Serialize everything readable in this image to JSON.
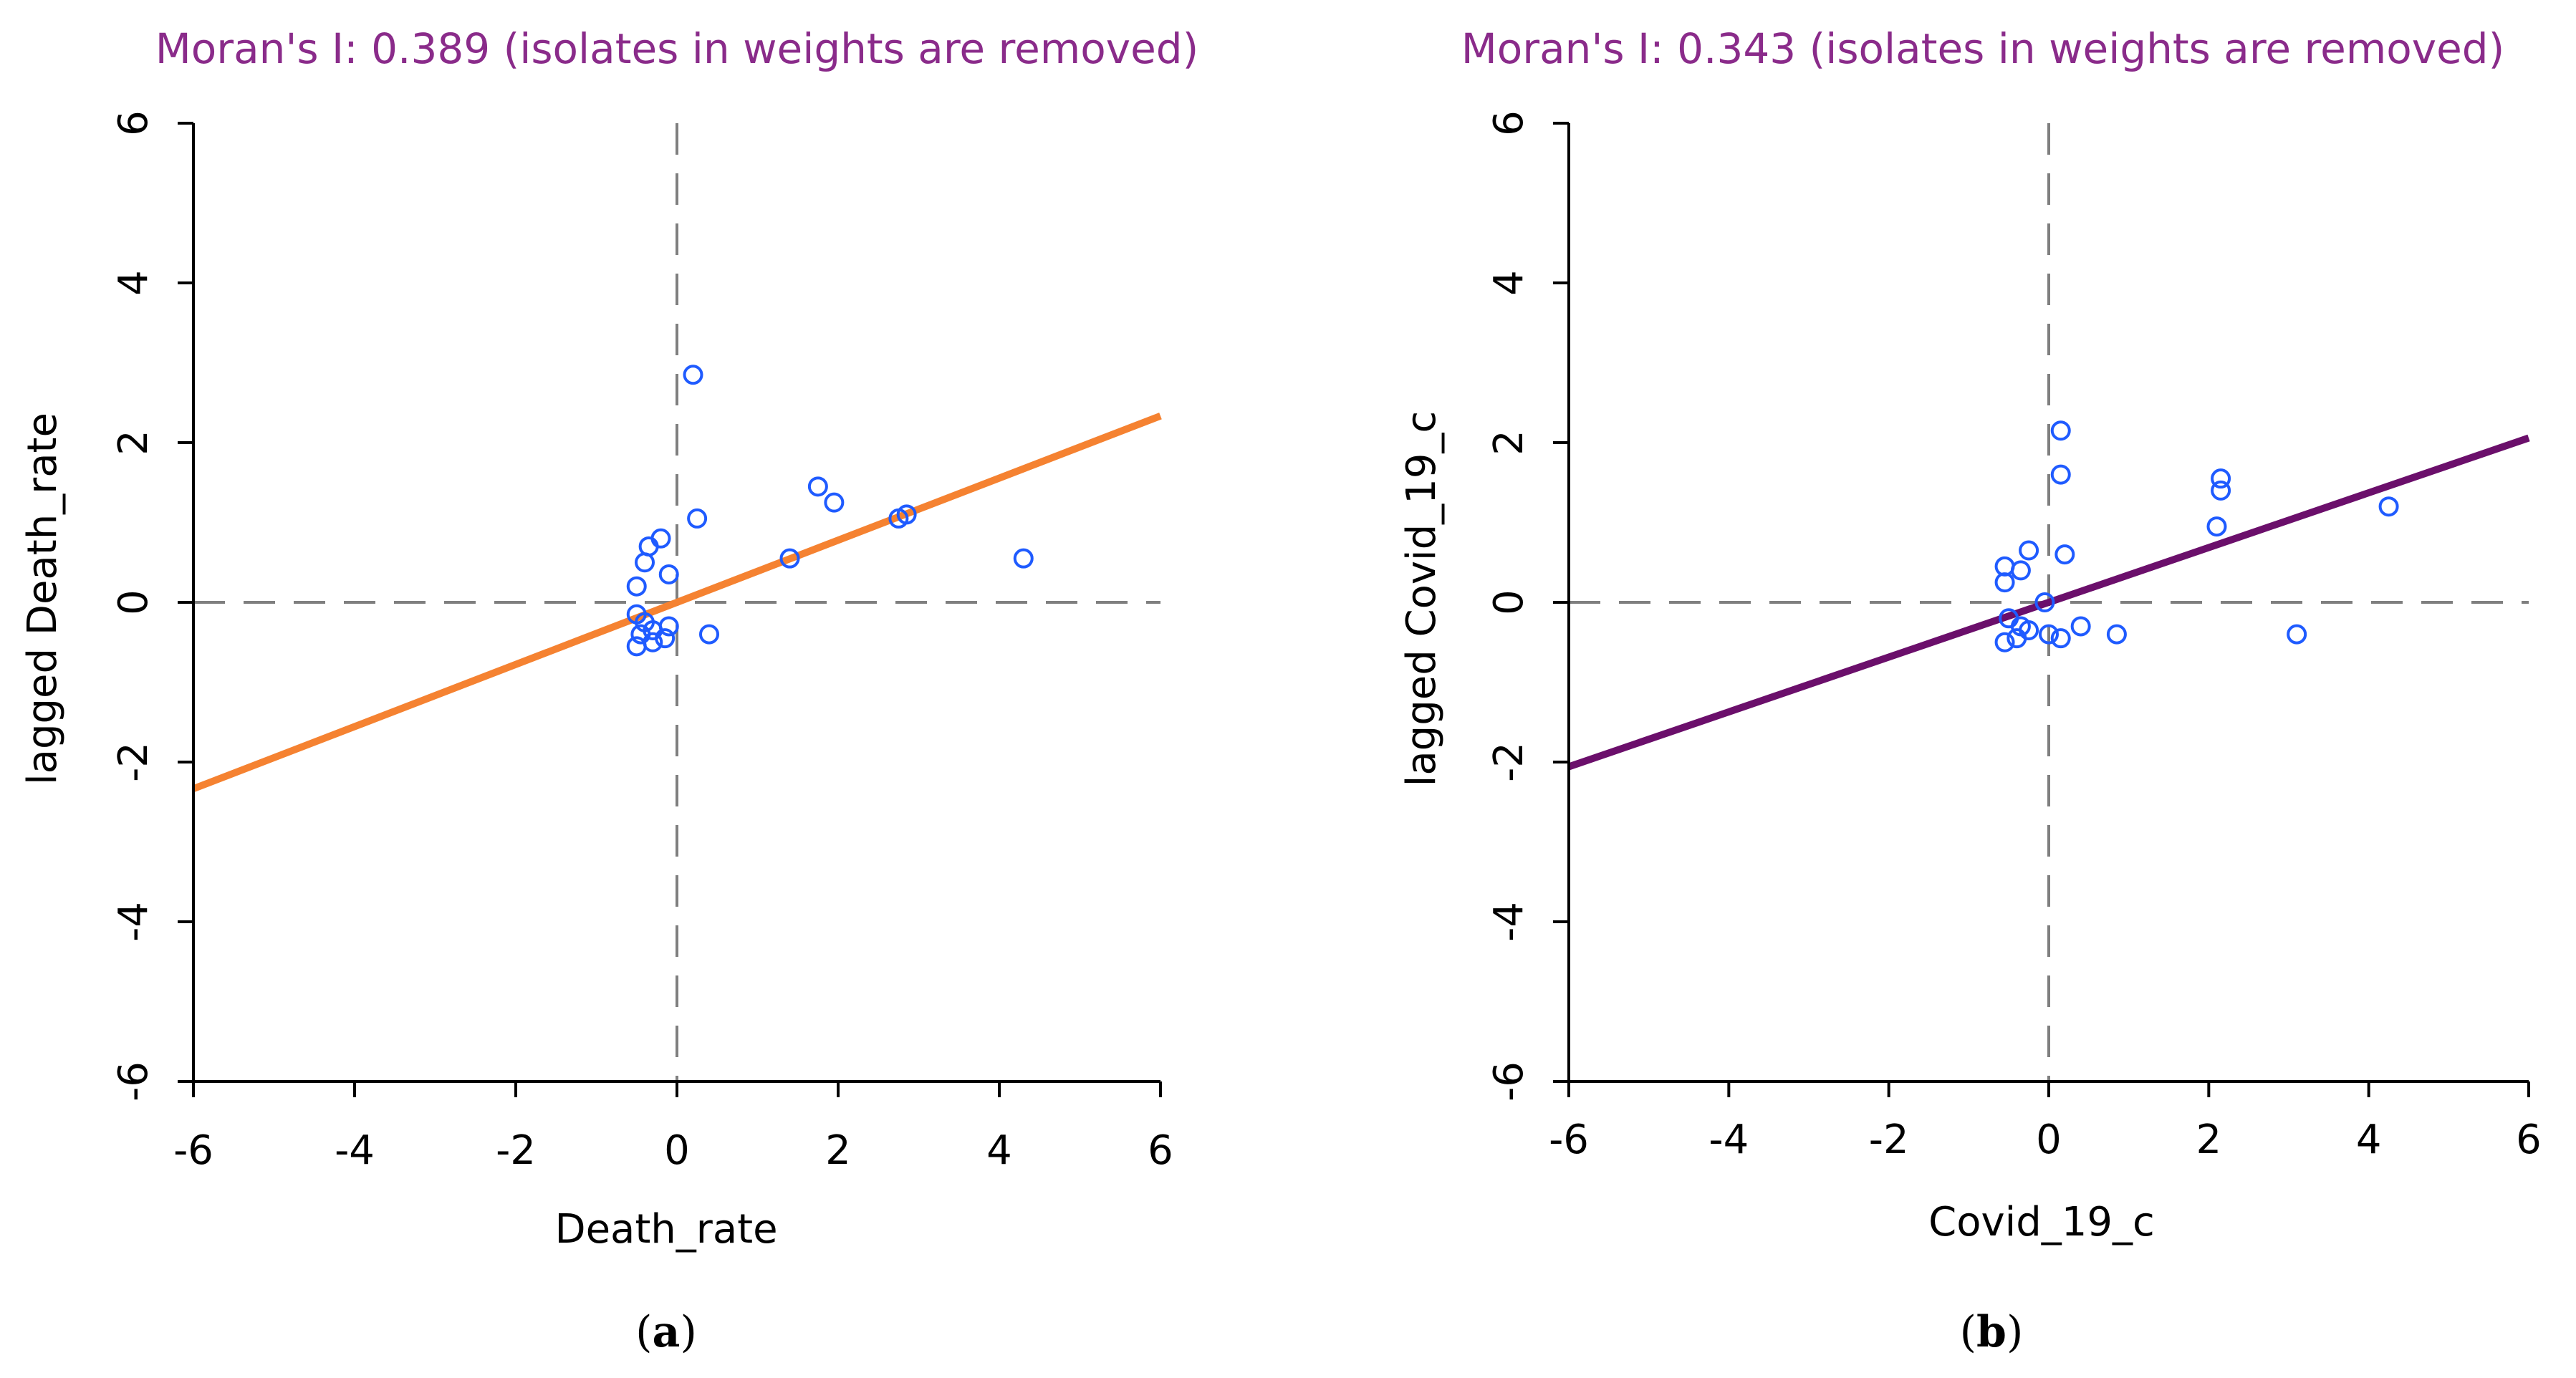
{
  "colors": {
    "title": "#8a2b8a",
    "points": "#1f5bff",
    "reference": "#7f7f7f",
    "axis": "#000000"
  },
  "chart_data": [
    {
      "type": "scatter",
      "title": "Moran's I: 0.389 (isolates in weights are removed)",
      "xlabel": "Death_rate",
      "ylabel": "lagged Death_rate",
      "caption_letter": "a",
      "xlim": [
        -6,
        6
      ],
      "ylim": [
        -6,
        6
      ],
      "xticks": [
        -6,
        -4,
        -2,
        0,
        2,
        4,
        6
      ],
      "yticks": [
        -6,
        -4,
        -2,
        0,
        2,
        4,
        6
      ],
      "xtick_labels": [
        "-6",
        "-4",
        "-2",
        "0",
        "2",
        "4",
        "6"
      ],
      "ytick_labels": [
        "-6",
        "-4",
        "-2",
        "0",
        "2",
        "4",
        "6"
      ],
      "reference_lines": {
        "x": 0,
        "y": 0,
        "style": "dashed"
      },
      "fit_line": {
        "slope": 0.389,
        "intercept": 0,
        "color": "#f58231"
      },
      "points": [
        {
          "x": 0.2,
          "y": 2.85
        },
        {
          "x": 1.75,
          "y": 1.45
        },
        {
          "x": 1.95,
          "y": 1.25
        },
        {
          "x": 2.75,
          "y": 1.05
        },
        {
          "x": 2.85,
          "y": 1.1
        },
        {
          "x": 4.3,
          "y": 0.55
        },
        {
          "x": 1.4,
          "y": 0.55
        },
        {
          "x": 0.25,
          "y": 1.05
        },
        {
          "x": -0.2,
          "y": 0.8
        },
        {
          "x": -0.35,
          "y": 0.7
        },
        {
          "x": -0.4,
          "y": 0.5
        },
        {
          "x": -0.1,
          "y": 0.35
        },
        {
          "x": -0.5,
          "y": 0.2
        },
        {
          "x": -0.5,
          "y": -0.15
        },
        {
          "x": -0.4,
          "y": -0.25
        },
        {
          "x": -0.3,
          "y": -0.35
        },
        {
          "x": -0.1,
          "y": -0.3
        },
        {
          "x": -0.15,
          "y": -0.45
        },
        {
          "x": -0.45,
          "y": -0.4
        },
        {
          "x": -0.5,
          "y": -0.55
        },
        {
          "x": -0.3,
          "y": -0.5
        },
        {
          "x": 0.4,
          "y": -0.4
        }
      ]
    },
    {
      "type": "scatter",
      "title": "Moran's I: 0.343 (isolates in weights are removed)",
      "xlabel": "Covid_19_c",
      "ylabel": "lagged Covid_19_c",
      "caption_letter": "b",
      "xlim": [
        -6,
        6
      ],
      "ylim": [
        -6,
        6
      ],
      "xticks": [
        -6,
        -4,
        -2,
        0,
        2,
        4,
        6
      ],
      "yticks": [
        -6,
        -4,
        -2,
        0,
        2,
        4,
        6
      ],
      "xtick_labels": [
        "-6",
        "-4",
        "-2",
        "0",
        "2",
        "4",
        "6"
      ],
      "ytick_labels": [
        "-6",
        "-4",
        "-2",
        "0",
        "2",
        "4",
        "6"
      ],
      "reference_lines": {
        "x": 0,
        "y": 0,
        "style": "dashed"
      },
      "fit_line": {
        "slope": 0.343,
        "intercept": 0,
        "color": "#6b0f6b"
      },
      "points": [
        {
          "x": 0.15,
          "y": 2.15
        },
        {
          "x": 0.15,
          "y": 1.6
        },
        {
          "x": 2.15,
          "y": 1.55
        },
        {
          "x": 2.15,
          "y": 1.4
        },
        {
          "x": 2.1,
          "y": 0.95
        },
        {
          "x": 4.25,
          "y": 1.2
        },
        {
          "x": 0.2,
          "y": 0.6
        },
        {
          "x": -0.25,
          "y": 0.65
        },
        {
          "x": -0.55,
          "y": 0.45
        },
        {
          "x": -0.35,
          "y": 0.4
        },
        {
          "x": -0.55,
          "y": 0.25
        },
        {
          "x": -0.05,
          "y": 0.0
        },
        {
          "x": -0.5,
          "y": -0.2
        },
        {
          "x": -0.35,
          "y": -0.3
        },
        {
          "x": -0.25,
          "y": -0.35
        },
        {
          "x": 0.0,
          "y": -0.4
        },
        {
          "x": 0.15,
          "y": -0.45
        },
        {
          "x": 0.4,
          "y": -0.3
        },
        {
          "x": -0.55,
          "y": -0.5
        },
        {
          "x": -0.4,
          "y": -0.45
        },
        {
          "x": 0.85,
          "y": -0.4
        },
        {
          "x": 3.1,
          "y": -0.4
        }
      ]
    }
  ]
}
